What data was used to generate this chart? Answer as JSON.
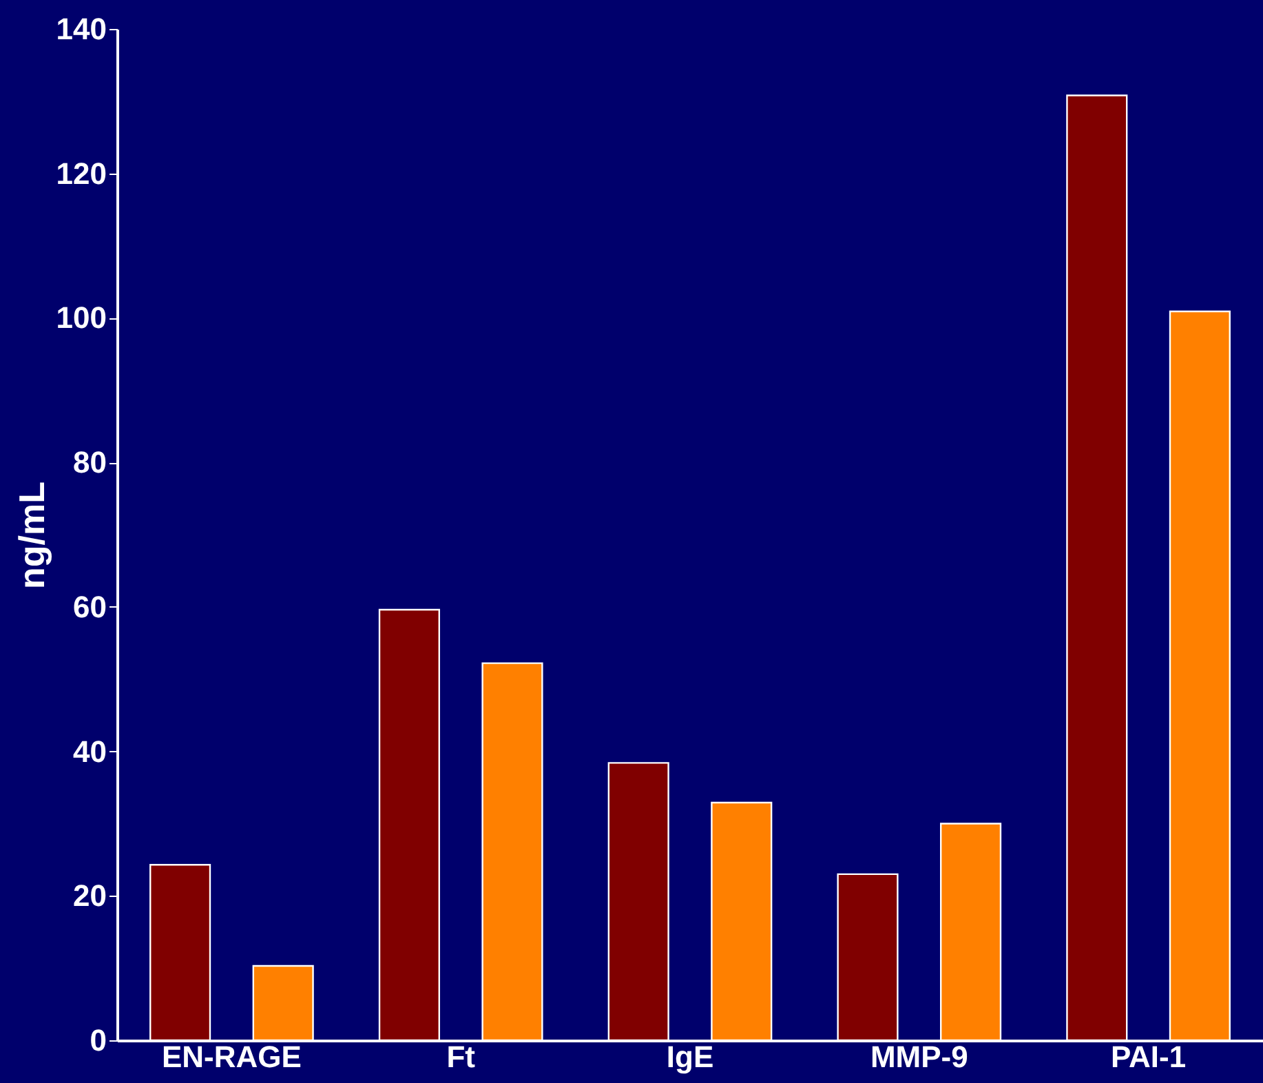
{
  "chart_data": {
    "type": "bar",
    "ylabel": "ng/mL",
    "categories": [
      "EN-RAGE",
      "Ft",
      "IgE",
      "MMP-9",
      "PAI-1"
    ],
    "series": [
      {
        "color": "#800000",
        "values": [
          24.3,
          59.6,
          38.4,
          23.0,
          130.8
        ]
      },
      {
        "color": "#ff8000",
        "values": [
          10.3,
          52.2,
          32.9,
          30.0,
          100.9
        ]
      }
    ],
    "ylim": [
      0,
      140
    ],
    "yticks": [
      0,
      20,
      40,
      60,
      80,
      100,
      120,
      140
    ],
    "grid": false
  }
}
